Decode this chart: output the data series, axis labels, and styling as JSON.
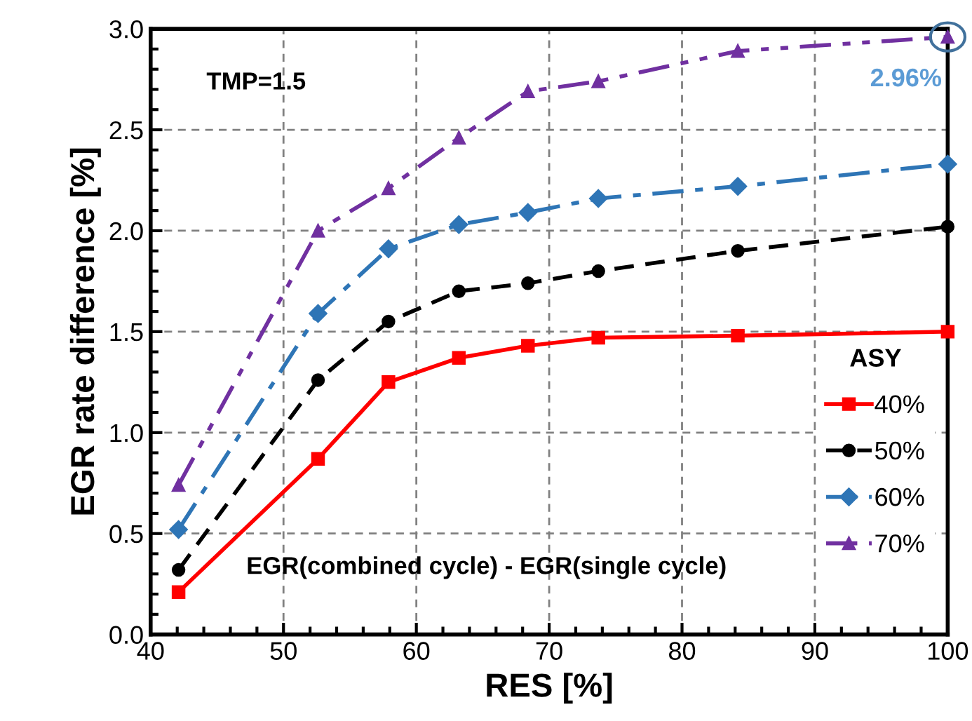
{
  "chart_data": {
    "type": "line",
    "xlabel": "RES [%]",
    "ylabel": "EGR rate difference [%]",
    "legend_title": "ASY",
    "legend": "right",
    "x": [
      42.1,
      52.6,
      57.9,
      63.2,
      68.4,
      73.7,
      84.2,
      100
    ],
    "xlim": [
      40,
      100
    ],
    "xticks": [
      40,
      50,
      60,
      70,
      80,
      90,
      100
    ],
    "ylim": [
      0,
      3.0
    ],
    "yticks": [
      {
        "value": 0,
        "label": "0.0"
      },
      {
        "value": 0.5,
        "label": "0.5"
      },
      {
        "value": 1,
        "label": "1.0"
      },
      {
        "value": 1.5,
        "label": "1.5"
      },
      {
        "value": 2,
        "label": "2.0"
      },
      {
        "value": 2.5,
        "label": "2.5"
      },
      {
        "value": 3,
        "label": "3.0"
      }
    ],
    "grid": true,
    "series": [
      {
        "name": "40%",
        "color": "#ff0000",
        "marker": "square",
        "line_style": "solid",
        "values": [
          0.21,
          0.87,
          1.25,
          1.37,
          1.43,
          1.47,
          1.48,
          1.5
        ]
      },
      {
        "name": "50%",
        "color": "#000000",
        "marker": "circle",
        "line_style": "dashed",
        "values": [
          0.32,
          1.26,
          1.55,
          1.7,
          1.74,
          1.8,
          1.9,
          2.02
        ]
      },
      {
        "name": "60%",
        "color": "#2e75b6",
        "marker": "diamond",
        "line_style": "dashdot",
        "values": [
          0.52,
          1.59,
          1.91,
          2.03,
          2.09,
          2.16,
          2.22,
          2.33
        ]
      },
      {
        "name": "70%",
        "color": "#7030a0",
        "marker": "triangle",
        "line_style": "dashdotdot",
        "values": [
          0.74,
          2.0,
          2.21,
          2.46,
          2.69,
          2.74,
          2.89,
          2.96
        ]
      }
    ],
    "annotations": [
      "TMP=1.5",
      "EGR(combined cycle) - EGR(single cycle)",
      {
        "text": "2.96%",
        "x": 100,
        "y": 2.96
      }
    ]
  }
}
